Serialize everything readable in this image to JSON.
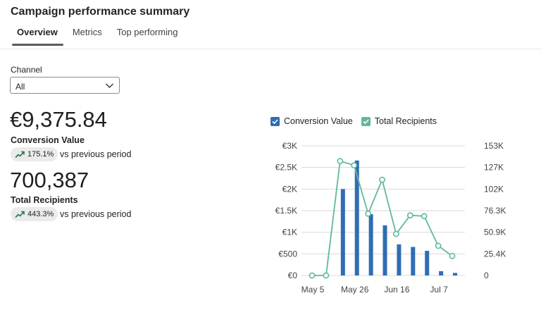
{
  "header": {
    "title": "Campaign performance summary",
    "tabs": [
      {
        "label": "Overview",
        "active": true
      },
      {
        "label": "Metrics",
        "active": false
      },
      {
        "label": "Top performing",
        "active": false
      }
    ]
  },
  "filter": {
    "label": "Channel",
    "value": "All"
  },
  "kpis": {
    "conversion": {
      "value": "€9,375.84",
      "label": "Conversion Value",
      "change": "175.1%",
      "compare": "vs previous period"
    },
    "recipients": {
      "value": "700,387",
      "label": "Total Recipients",
      "change": "443.3%",
      "compare": "vs previous period"
    }
  },
  "colors": {
    "bar": "#2f6db3",
    "line": "#5fb999",
    "accent_badge": "#1e7a47"
  },
  "chart_data": {
    "type": "bar",
    "legend": [
      {
        "name": "Conversion Value",
        "checked": true
      },
      {
        "name": "Total Recipients",
        "checked": true
      }
    ],
    "x_ticks": [
      "May 5",
      "May 26",
      "Jun 16",
      "Jul 7"
    ],
    "y_left_ticks": [
      "€0",
      "€500",
      "€1K",
      "€1.5K",
      "€2K",
      "€2.5K",
      "€3K"
    ],
    "y_right_ticks": [
      "0",
      "25.4K",
      "50.9K",
      "76.3K",
      "102K",
      "127K",
      "153K"
    ],
    "y_left_range": [
      0,
      3000
    ],
    "y_right_range": [
      0,
      153000
    ],
    "series": [
      {
        "name": "Conversion Value",
        "kind": "bar",
        "axis": "left",
        "values": [
          0,
          0,
          2000,
          2660,
          1420,
          1160,
          720,
          660,
          570,
          100,
          60
        ]
      },
      {
        "name": "Total Recipients",
        "kind": "line",
        "axis": "right",
        "values": [
          0,
          0,
          135000,
          130000,
          73000,
          113000,
          49000,
          71000,
          70000,
          35000,
          23000
        ]
      }
    ],
    "grid": true
  }
}
